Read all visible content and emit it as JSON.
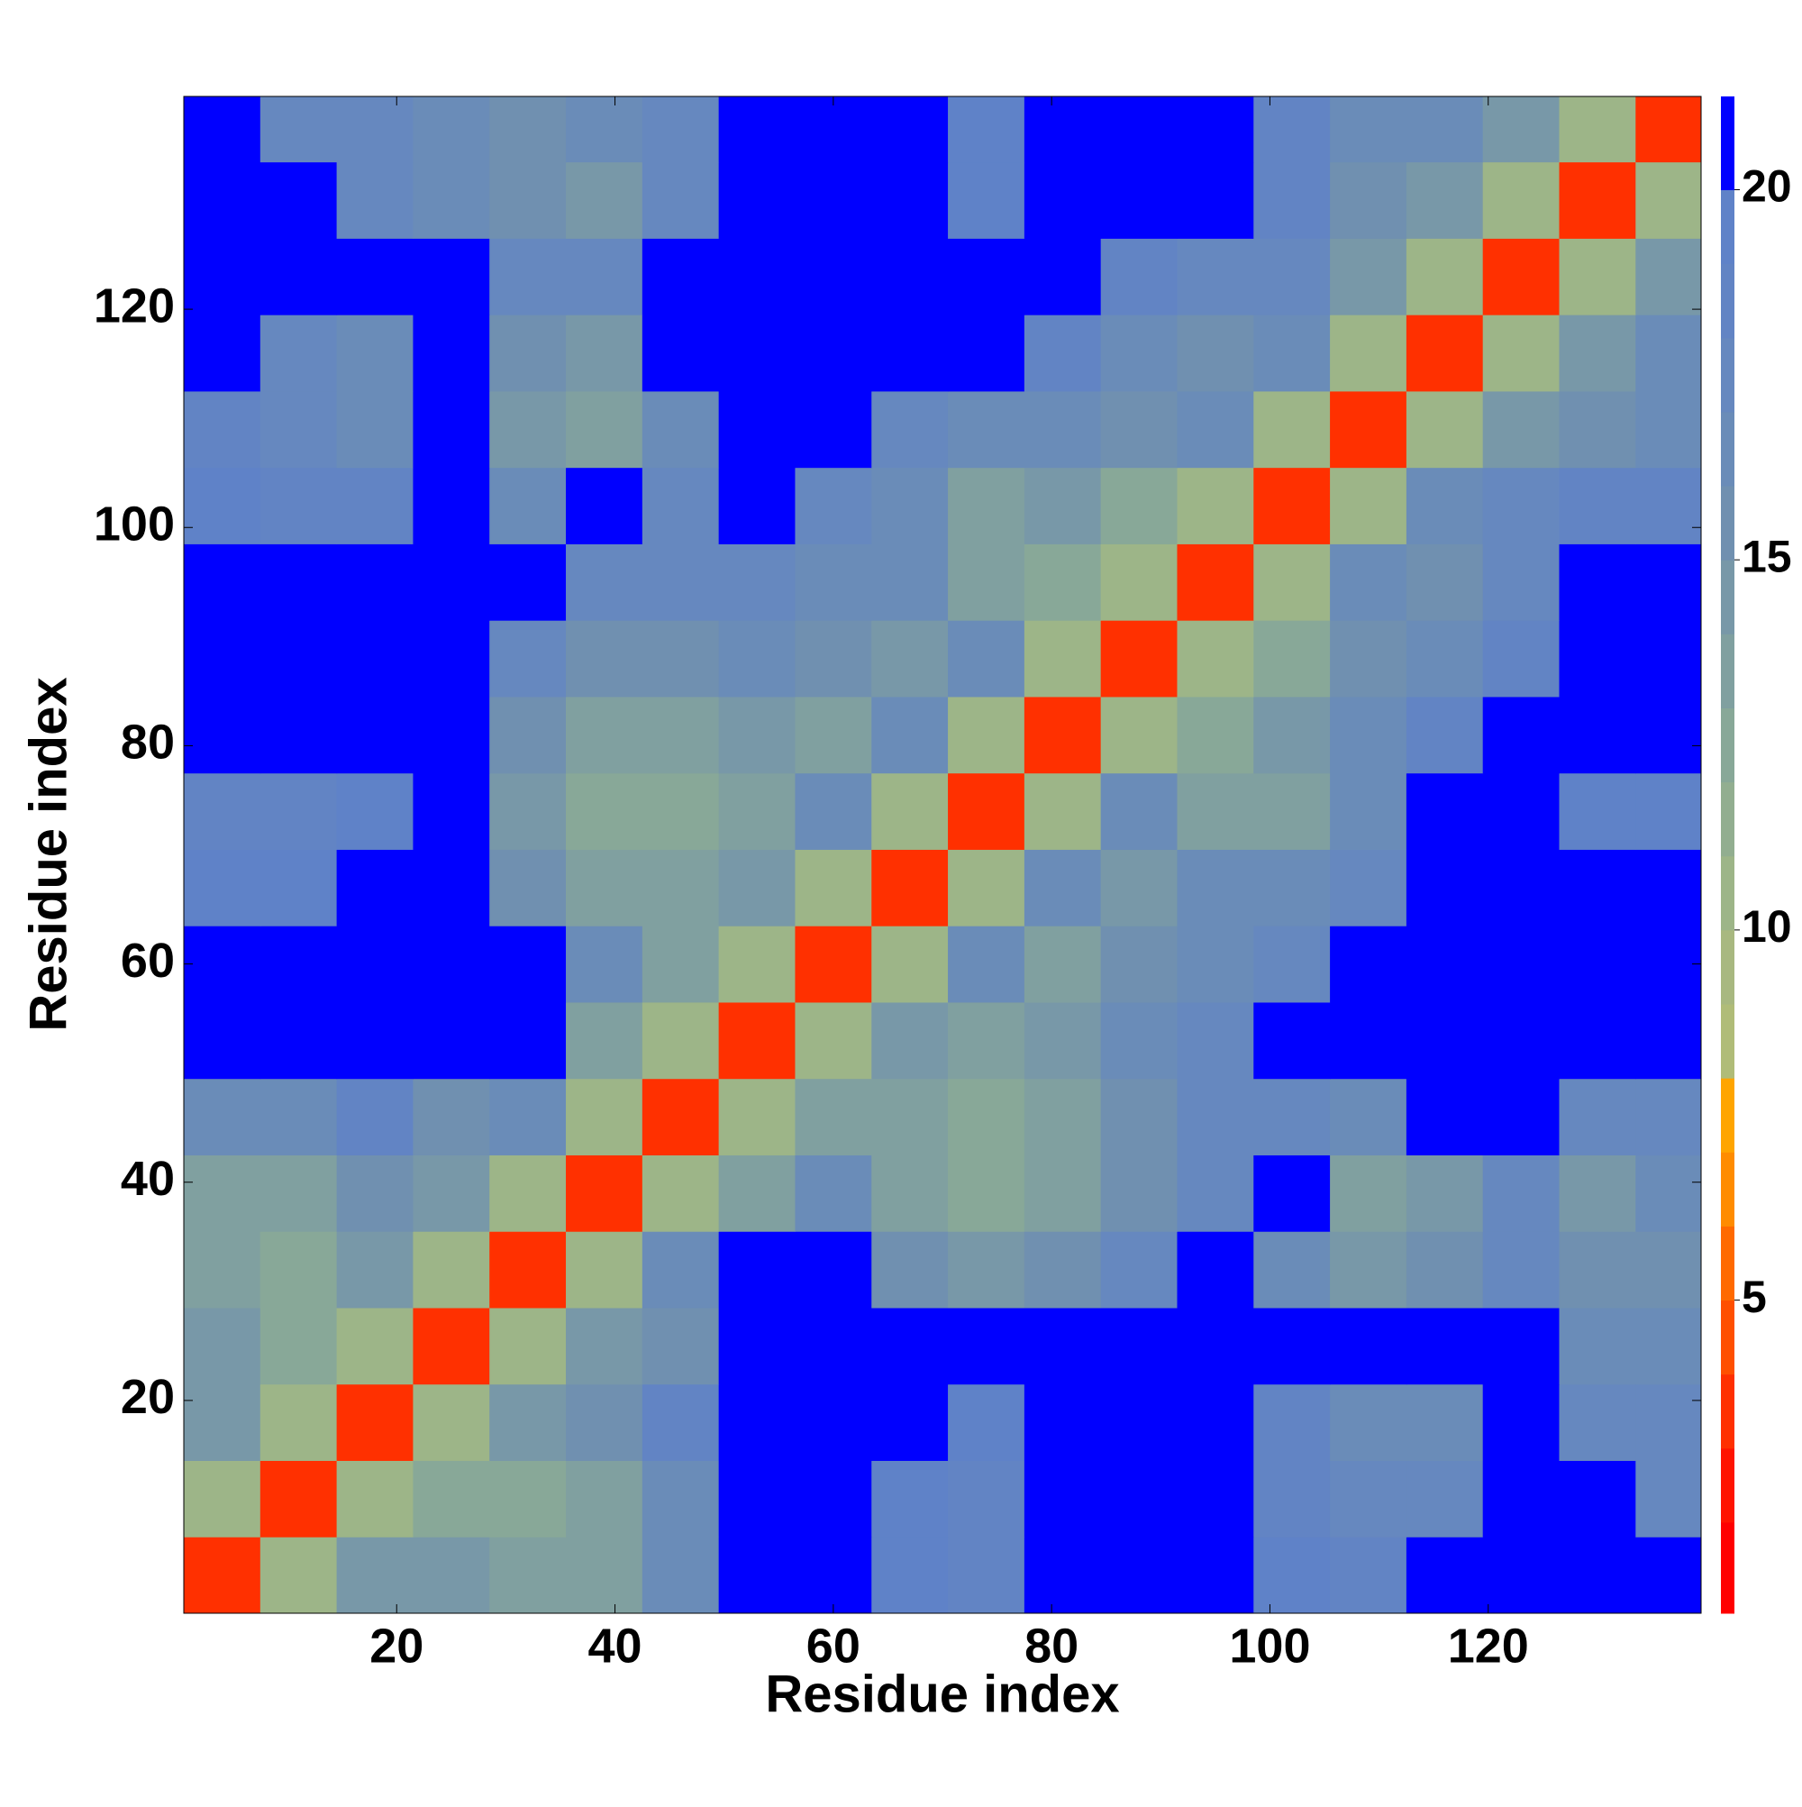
{
  "chart_data": {
    "type": "heatmap",
    "xlabel": "Residue index",
    "ylabel": "Residue index",
    "xlim": [
      0.5,
      139.5
    ],
    "ylim": [
      0.5,
      139.5
    ],
    "xticks": [
      20,
      40,
      60,
      80,
      100,
      120
    ],
    "yticks": [
      20,
      40,
      60,
      80,
      100,
      120
    ],
    "x_edges": [
      0.5,
      7.5,
      14.5,
      21.5,
      28.5,
      35.5,
      42.5,
      49.5,
      56.5,
      63.5,
      70.5,
      77.5,
      84.5,
      91.5,
      98.5,
      105.5,
      112.5,
      119.5,
      126.5,
      133.5,
      139.5
    ],
    "y_edges": [
      0.5,
      7.5,
      14.5,
      21.5,
      28.5,
      35.5,
      42.5,
      49.5,
      56.5,
      63.5,
      70.5,
      77.5,
      84.5,
      91.5,
      98.5,
      105.5,
      112.5,
      119.5,
      126.5,
      133.5,
      139.5
    ],
    "z": [
      [
        3,
        10,
        14,
        14,
        13,
        13,
        16,
        21,
        21,
        19,
        18,
        21,
        21,
        21,
        19,
        18,
        21,
        21,
        21,
        21
      ],
      [
        10,
        3,
        10,
        12,
        12,
        13,
        16,
        21,
        21,
        19,
        18,
        21,
        21,
        21,
        18,
        17,
        17,
        21,
        21,
        17
      ],
      [
        14,
        10,
        3,
        10,
        14,
        15,
        18,
        21,
        21,
        21,
        19,
        21,
        21,
        21,
        18,
        16,
        16,
        21,
        17,
        17
      ],
      [
        14,
        12,
        10,
        3,
        10,
        14,
        15,
        21,
        21,
        21,
        21,
        21,
        21,
        21,
        21,
        21,
        21,
        21,
        16,
        16
      ],
      [
        13,
        12,
        14,
        10,
        3,
        10,
        16,
        21,
        21,
        15,
        14,
        15,
        17,
        21,
        16,
        14,
        15,
        17,
        15,
        15
      ],
      [
        13,
        13,
        15,
        14,
        10,
        3,
        10,
        13,
        16,
        13,
        12,
        13,
        15,
        17,
        21,
        13,
        14,
        17,
        14,
        16
      ],
      [
        16,
        16,
        18,
        15,
        16,
        10,
        3,
        10,
        13,
        13,
        12,
        13,
        15,
        17,
        17,
        16,
        21,
        21,
        17,
        17
      ],
      [
        21,
        21,
        21,
        21,
        21,
        13,
        10,
        3,
        10,
        14,
        13,
        14,
        16,
        17,
        21,
        21,
        21,
        21,
        21,
        21
      ],
      [
        21,
        21,
        21,
        21,
        21,
        16,
        13,
        10,
        3,
        10,
        16,
        13,
        15,
        16,
        17,
        21,
        21,
        21,
        21,
        21
      ],
      [
        19,
        19,
        21,
        21,
        15,
        13,
        13,
        14,
        10,
        3,
        10,
        16,
        14,
        16,
        16,
        17,
        21,
        21,
        21,
        21
      ],
      [
        18,
        18,
        19,
        21,
        14,
        12,
        12,
        13,
        16,
        10,
        3,
        10,
        16,
        13,
        13,
        16,
        21,
        20,
        19,
        19
      ],
      [
        21,
        21,
        21,
        21,
        15,
        13,
        13,
        14,
        13,
        16,
        10,
        3,
        10,
        12,
        14,
        16,
        18,
        21,
        21,
        20
      ],
      [
        21,
        21,
        21,
        21,
        17,
        15,
        15,
        16,
        15,
        14,
        16,
        10,
        3,
        10,
        12,
        15,
        16,
        18,
        21,
        21
      ],
      [
        21,
        21,
        21,
        21,
        21,
        17,
        17,
        17,
        16,
        16,
        13,
        12,
        10,
        3,
        10,
        16,
        15,
        17,
        21,
        21
      ],
      [
        19,
        18,
        18,
        21,
        16,
        21,
        17,
        21,
        17,
        16,
        13,
        14,
        12,
        10,
        3,
        10,
        16,
        17,
        18,
        18
      ],
      [
        18,
        17,
        16,
        21,
        14,
        13,
        16,
        21,
        21,
        17,
        16,
        16,
        15,
        16,
        10,
        3,
        10,
        14,
        15,
        16
      ],
      [
        21,
        17,
        16,
        21,
        15,
        14,
        21,
        21,
        21,
        21,
        21,
        18,
        16,
        15,
        16,
        10,
        3,
        10,
        14,
        16
      ],
      [
        21,
        21,
        21,
        21,
        17,
        17,
        21,
        21,
        21,
        21,
        20,
        21,
        18,
        17,
        17,
        14,
        10,
        3,
        10,
        14
      ],
      [
        21,
        21,
        17,
        16,
        15,
        14,
        17,
        21,
        21,
        21,
        19,
        21,
        21,
        21,
        18,
        15,
        14,
        10,
        3,
        10
      ],
      [
        21,
        17,
        17,
        16,
        15,
        16,
        17,
        21,
        21,
        21,
        19,
        20,
        21,
        21,
        18,
        16,
        16,
        14,
        10,
        3
      ]
    ],
    "colorbar": {
      "ticks": [
        5,
        10,
        15,
        20
      ],
      "levels": [
        0.77,
        2,
        3,
        4,
        5,
        6,
        7,
        8,
        9,
        10,
        11,
        12,
        13,
        14,
        15,
        16,
        17,
        18,
        19,
        20,
        21.26
      ],
      "colors": [
        "#ff0000",
        "#ff1400",
        "#ff3000",
        "#ff5000",
        "#ff6a00",
        "#ff8c00",
        "#ffa500",
        "#b0bc78",
        "#a8b880",
        "#9db588",
        "#92ae90",
        "#88a898",
        "#80a0a0",
        "#7898a8",
        "#7090b0",
        "#6a8cb8",
        "#6688bf",
        "#6284c4",
        "#5f82c8",
        "#0000ff"
      ]
    }
  }
}
